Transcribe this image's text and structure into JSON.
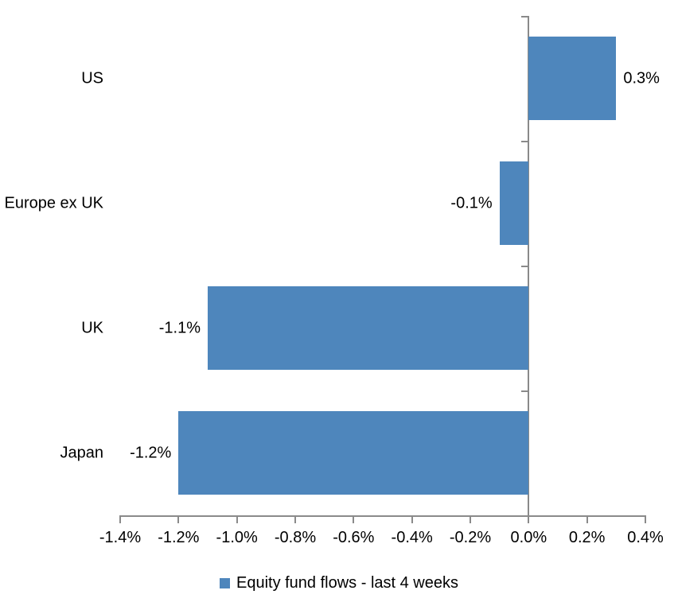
{
  "chart_data": {
    "type": "bar",
    "orientation": "horizontal",
    "title": "",
    "series_name": "Equity fund flows - last 4 weeks",
    "categories": [
      "US",
      "Europe ex UK",
      "UK",
      "Japan"
    ],
    "values": [
      0.3,
      -0.1,
      -1.1,
      -1.2
    ],
    "data_labels": [
      "0.3%",
      "-0.1%",
      "-1.1%",
      "-1.2%"
    ],
    "unit": "%",
    "xlim": [
      -1.4,
      0.4
    ],
    "x_ticks": [
      -1.4,
      -1.2,
      -1.0,
      -0.8,
      -0.6,
      -0.4,
      -0.2,
      0.0,
      0.2,
      0.4
    ],
    "x_tick_labels": [
      "-1.4%",
      "-1.2%",
      "-1.0%",
      "-0.8%",
      "-0.6%",
      "-0.4%",
      "-0.2%",
      "0.0%",
      "0.2%",
      "0.4%"
    ],
    "grid": false,
    "legend_position": "bottom",
    "colors": {
      "bar": "#4E86BC",
      "axis": "#8A8A8A",
      "text": "#000000",
      "background": "#FFFFFF"
    }
  },
  "legend": {
    "label": "Equity fund flows - last 4 weeks"
  }
}
